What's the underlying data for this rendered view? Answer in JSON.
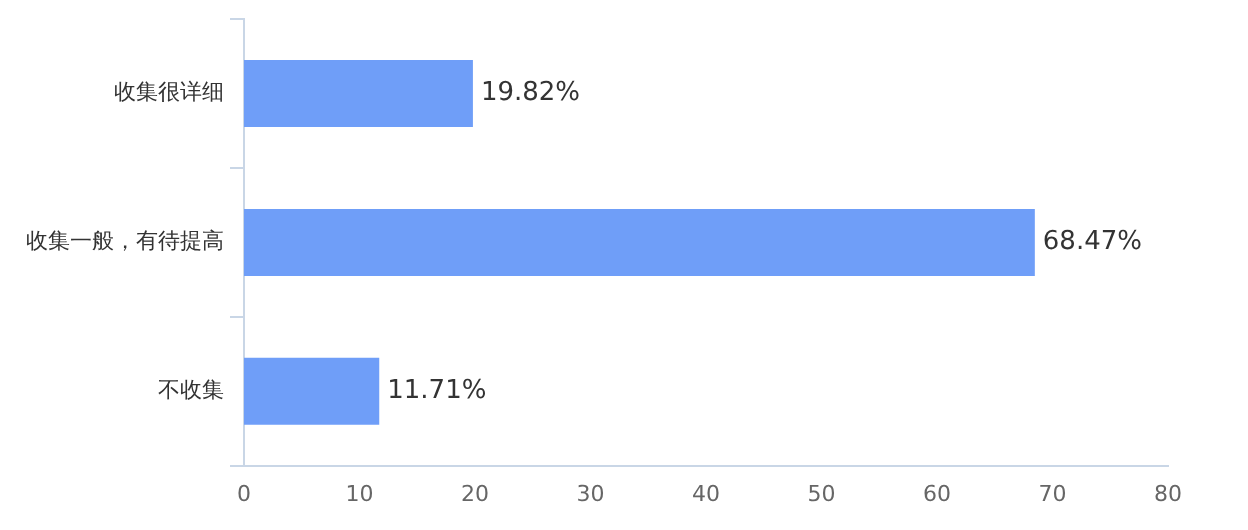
{
  "chart_data": {
    "type": "bar",
    "orientation": "horizontal",
    "categories": [
      "收集很详细",
      "收集一般，有待提高",
      "不收集"
    ],
    "values": [
      19.82,
      68.47,
      11.71
    ],
    "color": "#6f9ef8",
    "value_labels": [
      "19.82%",
      "68.47%",
      "11.71%"
    ],
    "xlim": [
      0,
      80
    ],
    "xticks": [
      0,
      10,
      20,
      30,
      40,
      50,
      60,
      70,
      80
    ],
    "grid": false,
    "legend": false
  }
}
